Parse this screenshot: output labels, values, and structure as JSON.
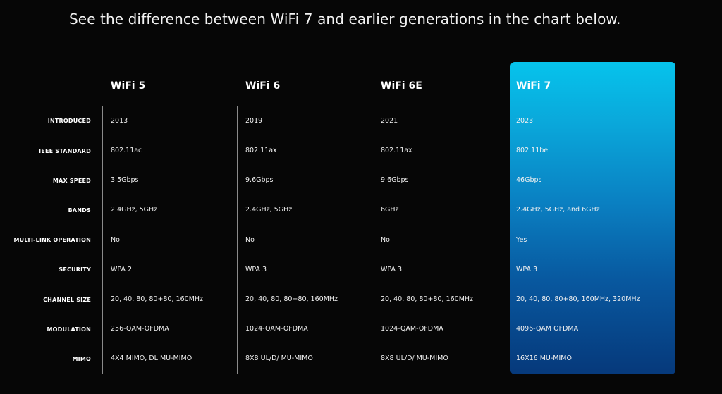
{
  "headline": "See the difference between WiFi 7 and earlier generations in the chart below.",
  "colors": {
    "background": "#060606",
    "highlight_top": "#06c3ec",
    "highlight_bottom": "#06397b"
  },
  "columns": [
    {
      "name": "WiFi 5"
    },
    {
      "name": "WiFi 6"
    },
    {
      "name": "WiFi 6E"
    },
    {
      "name": "WiFi 7"
    }
  ],
  "rows": [
    {
      "label": "INTRODUCED",
      "values": [
        "2013",
        "2019",
        "2021",
        "2023"
      ]
    },
    {
      "label": "IEEE STANDARD",
      "values": [
        "802.11ac",
        "802.11ax",
        "802.11ax",
        "802.11be"
      ]
    },
    {
      "label": "MAX SPEED",
      "values": [
        "3.5Gbps",
        "9.6Gbps",
        "9.6Gbps",
        "46Gbps"
      ]
    },
    {
      "label": "BANDS",
      "values": [
        "2.4GHz, 5GHz",
        "2.4GHz, 5GHz",
        "6GHz",
        "2.4GHz, 5GHz, and 6GHz"
      ]
    },
    {
      "label": "MULTI-LINK OPERATION",
      "values": [
        "No",
        "No",
        "No",
        "Yes"
      ]
    },
    {
      "label": "SECURITY",
      "values": [
        "WPA 2",
        "WPA 3",
        "WPA 3",
        "WPA 3"
      ]
    },
    {
      "label": "CHANNEL SIZE",
      "values": [
        "20, 40, 80, 80+80, 160MHz",
        "20, 40, 80, 80+80, 160MHz",
        "20, 40, 80, 80+80, 160MHz",
        "20, 40, 80, 80+80, 160MHz, 320MHz"
      ]
    },
    {
      "label": "MODULATION",
      "values": [
        "256-QAM-OFDMA",
        "1024-QAM-OFDMA",
        "1024-QAM-OFDMA",
        "4096-QAM OFDMA"
      ]
    },
    {
      "label": "MIMO",
      "values": [
        "4X4 MIMO, DL MU-MIMO",
        "8X8 UL/D/ MU-MIMO",
        "8X8 UL/D/ MU-MIMO",
        "16X16 MU-MIMO"
      ]
    }
  ]
}
